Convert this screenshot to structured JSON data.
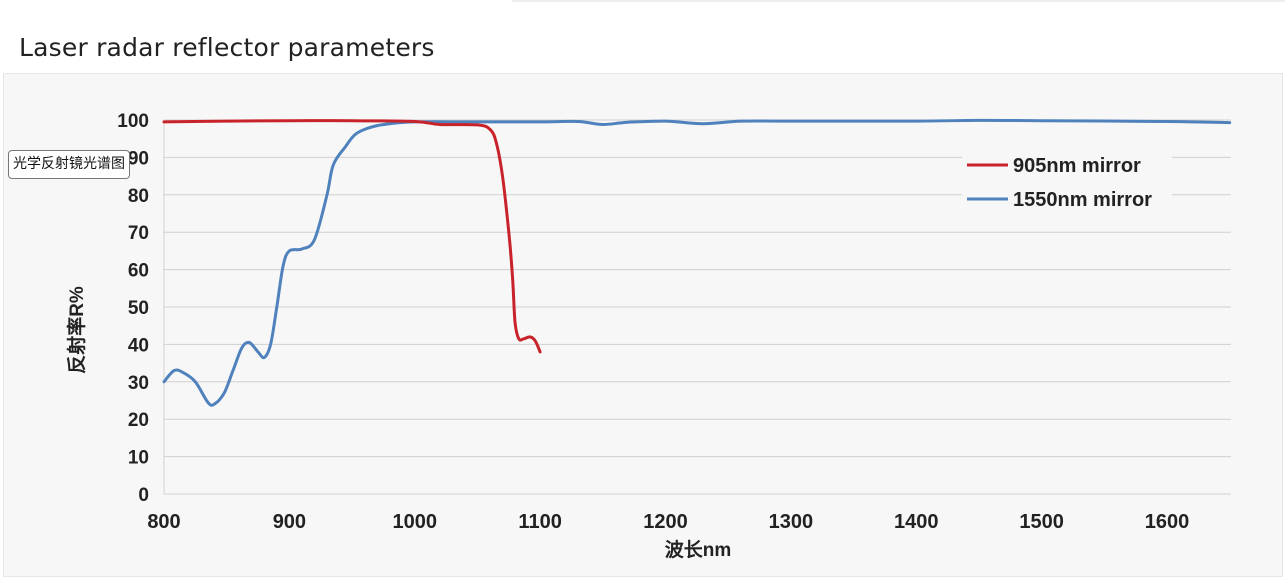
{
  "page": {
    "title": "Laser radar reflector parameters",
    "tooltip": "光学反射镜光谱图"
  },
  "colors": {
    "series_905": "#c8232b",
    "series_1550": "#4f81bd",
    "grid": "#d0d0d0"
  },
  "chart_data": {
    "type": "line",
    "xlabel": "波长nm",
    "ylabel": "反射率R%",
    "xlim": [
      800,
      1650
    ],
    "ylim": [
      0,
      100
    ],
    "x_ticks": [
      800,
      900,
      1000,
      1100,
      1200,
      1300,
      1400,
      1500,
      1600
    ],
    "y_ticks": [
      0,
      10,
      20,
      30,
      40,
      50,
      60,
      70,
      80,
      90,
      100
    ],
    "grid": true,
    "legend_position": "top-right",
    "series": [
      {
        "name": "905nm mirror",
        "color": "#c8232b",
        "points": [
          [
            800,
            99.5
          ],
          [
            850,
            99.7
          ],
          [
            900,
            99.8
          ],
          [
            950,
            99.8
          ],
          [
            1000,
            99.6
          ],
          [
            1020,
            98.8
          ],
          [
            1050,
            98.7
          ],
          [
            1060,
            97.5
          ],
          [
            1065,
            94
          ],
          [
            1070,
            85
          ],
          [
            1075,
            70
          ],
          [
            1078,
            58
          ],
          [
            1080,
            46
          ],
          [
            1083,
            41.5
          ],
          [
            1087,
            41.5
          ],
          [
            1092,
            42
          ],
          [
            1096,
            41
          ],
          [
            1100,
            38
          ]
        ]
      },
      {
        "name": "1550nm mirror",
        "color": "#4f81bd",
        "points": [
          [
            800,
            30
          ],
          [
            808,
            33
          ],
          [
            815,
            32.5
          ],
          [
            825,
            30
          ],
          [
            835,
            24.5
          ],
          [
            840,
            24
          ],
          [
            848,
            27
          ],
          [
            855,
            33
          ],
          [
            862,
            39
          ],
          [
            868,
            40.5
          ],
          [
            875,
            38
          ],
          [
            880,
            36.5
          ],
          [
            885,
            40
          ],
          [
            890,
            50
          ],
          [
            895,
            61
          ],
          [
            900,
            65
          ],
          [
            910,
            65.5
          ],
          [
            920,
            68
          ],
          [
            930,
            80
          ],
          [
            935,
            88
          ],
          [
            945,
            93
          ],
          [
            952,
            96
          ],
          [
            960,
            97.5
          ],
          [
            970,
            98.5
          ],
          [
            980,
            99
          ],
          [
            1000,
            99.5
          ],
          [
            1050,
            99.5
          ],
          [
            1100,
            99.5
          ],
          [
            1130,
            99.6
          ],
          [
            1150,
            98.8
          ],
          [
            1170,
            99.4
          ],
          [
            1200,
            99.7
          ],
          [
            1230,
            99
          ],
          [
            1260,
            99.7
          ],
          [
            1300,
            99.7
          ],
          [
            1400,
            99.7
          ],
          [
            1450,
            99.9
          ],
          [
            1500,
            99.8
          ],
          [
            1600,
            99.6
          ],
          [
            1650,
            99.3
          ]
        ]
      }
    ]
  }
}
